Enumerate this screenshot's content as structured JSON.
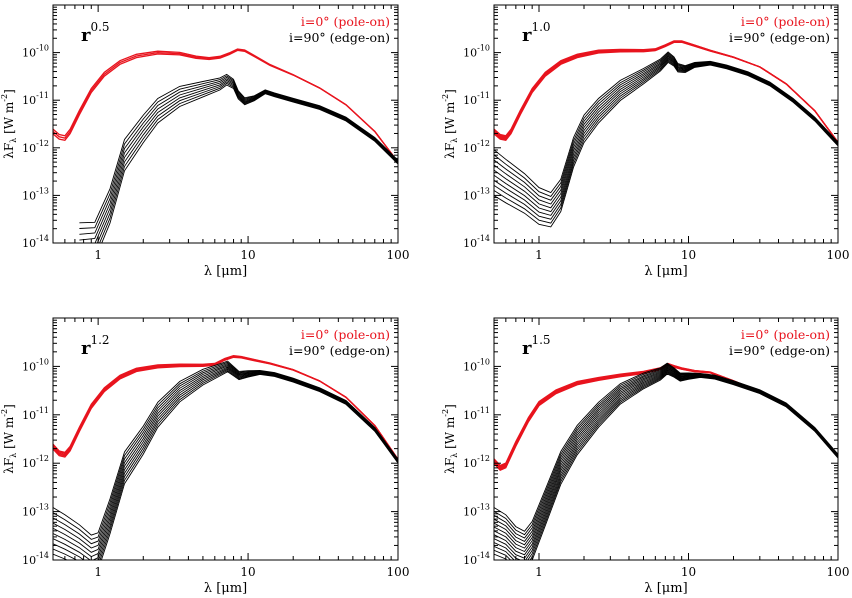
{
  "chart_data": [
    {
      "type": "line",
      "panel_label": {
        "base": "r",
        "exponent": "0.5"
      },
      "xlabel": "λ [μm]",
      "ylabel": {
        "base": "λF",
        "sub": "λ",
        "unit": "[W m",
        "unit_exp": "-2",
        "close": "]"
      },
      "xscale": "log",
      "yscale": "log",
      "xlim": [
        0.5,
        100
      ],
      "ylim": [
        1e-14,
        1e-09
      ],
      "x_ticks": [
        {
          "v": 1,
          "label": "1"
        },
        {
          "v": 10,
          "label": "10"
        },
        {
          "v": 100,
          "label": "100"
        }
      ],
      "y_ticks": [
        {
          "v": 1e-14,
          "exp": "-14"
        },
        {
          "v": 1e-13,
          "exp": "-13"
        },
        {
          "v": 1e-12,
          "exp": "-12"
        },
        {
          "v": 1e-11,
          "exp": "-11"
        },
        {
          "v": 1e-10,
          "exp": "-10"
        }
      ],
      "legend": [
        {
          "text": "i=0° (pole-on)",
          "color": "#e8141e"
        },
        {
          "text": "i=90° (edge-on)",
          "color": "#000000"
        }
      ],
      "legend_position": "top-right",
      "series": [
        {
          "color": "#e8141e",
          "points": [
            [
              0.5,
              2.2e-12
            ],
            [
              0.55,
              1.7e-12
            ],
            [
              0.6,
              1.6e-12
            ],
            [
              0.65,
              2.2e-12
            ],
            [
              0.75,
              5.5e-12
            ],
            [
              0.9,
              1.6e-11
            ],
            [
              1.1,
              3.5e-11
            ],
            [
              1.4,
              6.2e-11
            ],
            [
              1.8,
              8.5e-11
            ],
            [
              2.5,
              1e-10
            ],
            [
              3.5,
              9.5e-11
            ],
            [
              4.5,
              8e-11
            ],
            [
              5.5,
              7.5e-11
            ],
            [
              6.5,
              8e-11
            ],
            [
              7.5,
              9.5e-11
            ],
            [
              8.5,
              1.15e-10
            ],
            [
              9.5,
              1.1e-10
            ],
            [
              11,
              8.5e-11
            ],
            [
              14,
              5.5e-11
            ],
            [
              20,
              3.4e-11
            ],
            [
              30,
              1.8e-11
            ],
            [
              45,
              8e-12
            ],
            [
              70,
              2.2e-12
            ],
            [
              100,
              5e-13
            ]
          ]
        },
        {
          "color": "#000000",
          "points": [
            [
              0.75,
              1e-14
            ],
            [
              0.95,
              1.1e-14
            ],
            [
              1.2,
              6e-14
            ],
            [
              1.5,
              7e-13
            ],
            [
              2,
              2.5e-12
            ],
            [
              2.5,
              6e-12
            ],
            [
              3.5,
              1.2e-11
            ],
            [
              5,
              1.7e-11
            ],
            [
              6.5,
              2.2e-11
            ],
            [
              7.2,
              2.7e-11
            ],
            [
              8,
              2.2e-11
            ],
            [
              8.6,
              1.3e-11
            ],
            [
              9.5,
              9.5e-12
            ],
            [
              11,
              1.1e-11
            ],
            [
              13,
              1.5e-11
            ],
            [
              15,
              1.3e-11
            ],
            [
              20,
              1e-11
            ],
            [
              30,
              7e-12
            ],
            [
              45,
              4e-12
            ],
            [
              70,
              1.5e-12
            ],
            [
              100,
              5e-13
            ]
          ]
        }
      ]
    },
    {
      "type": "line",
      "panel_label": {
        "base": "r",
        "exponent": "1.0"
      },
      "xlabel": "λ [μm]",
      "ylabel": {
        "base": "λF",
        "sub": "λ",
        "unit": "[W m",
        "unit_exp": "-2",
        "close": "]"
      },
      "xscale": "log",
      "yscale": "log",
      "xlim": [
        0.5,
        100
      ],
      "ylim": [
        1e-14,
        1e-09
      ],
      "x_ticks": [
        {
          "v": 1,
          "label": "1"
        },
        {
          "v": 10,
          "label": "10"
        },
        {
          "v": 100,
          "label": "100"
        }
      ],
      "y_ticks": [
        {
          "v": 1e-14,
          "exp": "-14"
        },
        {
          "v": 1e-13,
          "exp": "-13"
        },
        {
          "v": 1e-12,
          "exp": "-12"
        },
        {
          "v": 1e-11,
          "exp": "-11"
        },
        {
          "v": 1e-10,
          "exp": "-10"
        }
      ],
      "legend": [
        {
          "text": "i=0° (pole-on)",
          "color": "#e8141e"
        },
        {
          "text": "i=90° (edge-on)",
          "color": "#000000"
        }
      ],
      "legend_position": "top-right",
      "series": [
        {
          "color": "#e8141e",
          "points": [
            [
              0.5,
              2.2e-12
            ],
            [
              0.55,
              1.7e-12
            ],
            [
              0.6,
              1.6e-12
            ],
            [
              0.65,
              2.2e-12
            ],
            [
              0.75,
              5.5e-12
            ],
            [
              0.9,
              1.6e-11
            ],
            [
              1.1,
              3.5e-11
            ],
            [
              1.4,
              6.2e-11
            ],
            [
              1.8,
              8.5e-11
            ],
            [
              2.5,
              1.05e-10
            ],
            [
              3.5,
              1.1e-10
            ],
            [
              5,
              1.1e-10
            ],
            [
              6,
              1.15e-10
            ],
            [
              7,
              1.4e-10
            ],
            [
              8,
              1.7e-10
            ],
            [
              9,
              1.7e-10
            ],
            [
              11,
              1.4e-10
            ],
            [
              14,
              1.1e-10
            ],
            [
              20,
              8e-11
            ],
            [
              30,
              5e-11
            ],
            [
              45,
              2.2e-11
            ],
            [
              70,
              6e-12
            ],
            [
              100,
              1.3e-12
            ]
          ]
        },
        {
          "color": "#000000",
          "points": [
            [
              0.5,
              3e-13
            ],
            [
              0.6,
              2e-13
            ],
            [
              0.8,
              1.1e-13
            ],
            [
              1,
              6e-14
            ],
            [
              1.2,
              5e-14
            ],
            [
              1.4,
              1e-13
            ],
            [
              1.7,
              8e-13
            ],
            [
              2,
              2.5e-12
            ],
            [
              2.5,
              6e-12
            ],
            [
              3.5,
              1.6e-11
            ],
            [
              5,
              3.2e-11
            ],
            [
              6.5,
              5.5e-11
            ],
            [
              7.3,
              8e-11
            ],
            [
              8,
              6.5e-11
            ],
            [
              8.5,
              4.8e-11
            ],
            [
              9.5,
              4.5e-11
            ],
            [
              11,
              5.5e-11
            ],
            [
              14,
              6e-11
            ],
            [
              18,
              5e-11
            ],
            [
              25,
              3.6e-11
            ],
            [
              35,
              2.2e-11
            ],
            [
              50,
              1e-11
            ],
            [
              70,
              4e-12
            ],
            [
              100,
              1.2e-12
            ]
          ]
        }
      ]
    },
    {
      "type": "line",
      "panel_label": {
        "base": "r",
        "exponent": "1.2"
      },
      "xlabel": "λ [μm]",
      "ylabel": {
        "base": "λF",
        "sub": "λ",
        "unit": "[W m",
        "unit_exp": "-2",
        "close": "]"
      },
      "xscale": "log",
      "yscale": "log",
      "xlim": [
        0.5,
        100
      ],
      "ylim": [
        1e-14,
        1e-09
      ],
      "x_ticks": [
        {
          "v": 1,
          "label": "1"
        },
        {
          "v": 10,
          "label": "10"
        },
        {
          "v": 100,
          "label": "100"
        }
      ],
      "y_ticks": [
        {
          "v": 1e-14,
          "exp": "-14"
        },
        {
          "v": 1e-13,
          "exp": "-13"
        },
        {
          "v": 1e-12,
          "exp": "-12"
        },
        {
          "v": 1e-11,
          "exp": "-11"
        },
        {
          "v": 1e-10,
          "exp": "-10"
        }
      ],
      "legend": [
        {
          "text": "i=0° (pole-on)",
          "color": "#e8141e"
        },
        {
          "text": "i=90° (edge-on)",
          "color": "#000000"
        }
      ],
      "legend_position": "top-right",
      "series": [
        {
          "color": "#e8141e",
          "points": [
            [
              0.5,
              2.2e-12
            ],
            [
              0.55,
              1.6e-12
            ],
            [
              0.6,
              1.5e-12
            ],
            [
              0.65,
              2e-12
            ],
            [
              0.75,
              5e-12
            ],
            [
              0.9,
              1.5e-11
            ],
            [
              1.1,
              3.3e-11
            ],
            [
              1.4,
              6e-11
            ],
            [
              1.8,
              8.5e-11
            ],
            [
              2.5,
              1e-10
            ],
            [
              3.5,
              1.05e-10
            ],
            [
              5,
              1.05e-10
            ],
            [
              6,
              1.1e-10
            ],
            [
              7,
              1.4e-10
            ],
            [
              8,
              1.6e-10
            ],
            [
              9,
              1.55e-10
            ],
            [
              11,
              1.35e-10
            ],
            [
              14,
              1.15e-10
            ],
            [
              20,
              8.5e-11
            ],
            [
              30,
              5e-11
            ],
            [
              45,
              2.3e-11
            ],
            [
              70,
              6e-12
            ],
            [
              100,
              1.2e-12
            ]
          ]
        },
        {
          "color": "#000000",
          "points": [
            [
              0.5,
              4e-14
            ],
            [
              0.6,
              3e-14
            ],
            [
              0.75,
              2e-14
            ],
            [
              0.9,
              1.3e-14
            ],
            [
              1,
              1.5e-14
            ],
            [
              1.2,
              8e-14
            ],
            [
              1.5,
              8e-13
            ],
            [
              2,
              3e-12
            ],
            [
              2.5,
              1e-11
            ],
            [
              3.5,
              3e-11
            ],
            [
              5,
              6e-11
            ],
            [
              6.5,
              8.5e-11
            ],
            [
              7.3,
              1e-10
            ],
            [
              8,
              8e-11
            ],
            [
              8.7,
              6.5e-11
            ],
            [
              10,
              7e-11
            ],
            [
              12,
              7.5e-11
            ],
            [
              15,
              6.8e-11
            ],
            [
              20,
              5.2e-11
            ],
            [
              30,
              3.3e-11
            ],
            [
              45,
              1.8e-11
            ],
            [
              70,
              5e-12
            ],
            [
              100,
              1.1e-12
            ]
          ]
        }
      ]
    },
    {
      "type": "line",
      "panel_label": {
        "base": "r",
        "exponent": "1.5"
      },
      "xlabel": "λ [μm]",
      "ylabel": {
        "base": "λF",
        "sub": "λ",
        "unit": "[W m",
        "unit_exp": "-2",
        "close": "]"
      },
      "xscale": "log",
      "yscale": "log",
      "xlim": [
        0.5,
        100
      ],
      "ylim": [
        1e-14,
        1e-09
      ],
      "x_ticks": [
        {
          "v": 1,
          "label": "1"
        },
        {
          "v": 10,
          "label": "10"
        },
        {
          "v": 100,
          "label": "100"
        }
      ],
      "y_ticks": [
        {
          "v": 1e-14,
          "exp": "-14"
        },
        {
          "v": 1e-13,
          "exp": "-13"
        },
        {
          "v": 1e-12,
          "exp": "-12"
        },
        {
          "v": 1e-11,
          "exp": "-11"
        },
        {
          "v": 1e-10,
          "exp": "-10"
        }
      ],
      "legend": [
        {
          "text": "i=0° (pole-on)",
          "color": "#e8141e"
        },
        {
          "text": "i=90° (edge-on)",
          "color": "#000000"
        }
      ],
      "legend_position": "top-right",
      "series": [
        {
          "color": "#e8141e",
          "points": [
            [
              0.5,
              1.1e-12
            ],
            [
              0.55,
              8e-13
            ],
            [
              0.6,
              9e-13
            ],
            [
              0.7,
              2.5e-12
            ],
            [
              0.85,
              8e-12
            ],
            [
              1,
              1.7e-11
            ],
            [
              1.3,
              3e-11
            ],
            [
              1.8,
              4.5e-11
            ],
            [
              2.5,
              5.5e-11
            ],
            [
              3.5,
              6.5e-11
            ],
            [
              5,
              7.5e-11
            ],
            [
              6.5,
              9e-11
            ],
            [
              7.3,
              1.1e-10
            ],
            [
              8,
              1e-10
            ],
            [
              9,
              9e-11
            ],
            [
              11,
              8e-11
            ],
            [
              14,
              7.5e-11
            ],
            [
              20,
              5e-11
            ],
            [
              30,
              3e-11
            ],
            [
              45,
              1.6e-11
            ],
            [
              70,
              5e-12
            ],
            [
              100,
              1.4e-12
            ]
          ]
        },
        {
          "color": "#000000",
          "points": [
            [
              0.5,
              4e-14
            ],
            [
              0.6,
              3e-14
            ],
            [
              0.7,
              1.8e-14
            ],
            [
              0.8,
              1.5e-14
            ],
            [
              0.9,
              2.5e-14
            ],
            [
              1.1,
              1.2e-13
            ],
            [
              1.4,
              8e-13
            ],
            [
              1.8,
              3e-12
            ],
            [
              2.5,
              1e-11
            ],
            [
              3.5,
              2.7e-11
            ],
            [
              5,
              5e-11
            ],
            [
              6.5,
              7e-11
            ],
            [
              7.2,
              9e-11
            ],
            [
              8,
              7.5e-11
            ],
            [
              8.8,
              6e-11
            ],
            [
              10,
              6.3e-11
            ],
            [
              12,
              6.5e-11
            ],
            [
              15,
              6e-11
            ],
            [
              20,
              4.6e-11
            ],
            [
              30,
              3e-11
            ],
            [
              45,
              1.6e-11
            ],
            [
              70,
              5e-12
            ],
            [
              100,
              1.4e-12
            ]
          ]
        }
      ]
    }
  ]
}
